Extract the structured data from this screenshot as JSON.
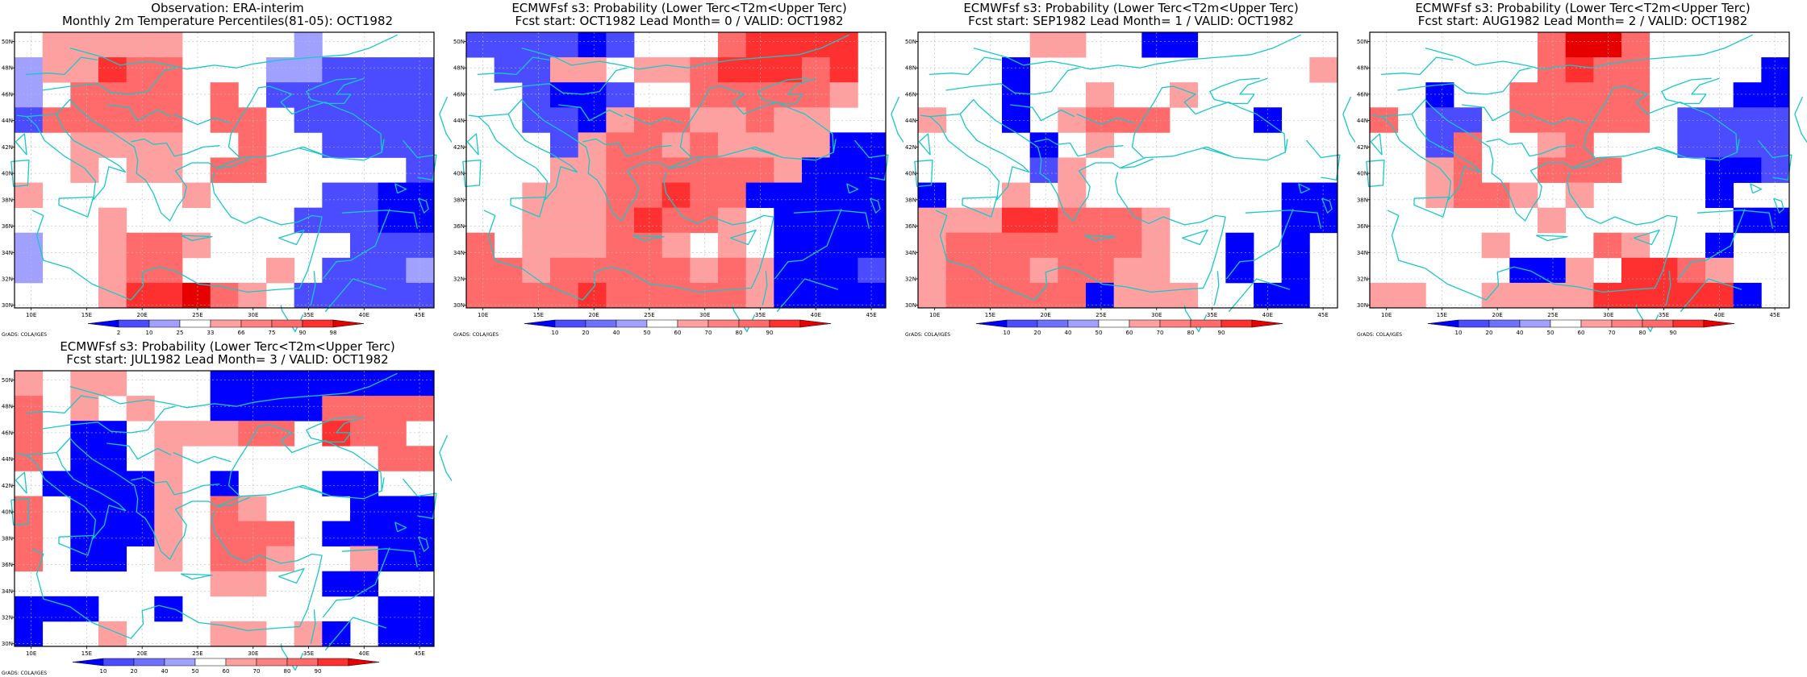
{
  "map": {
    "lon_labels": [
      "10E",
      "15E",
      "20E",
      "25E",
      "30E",
      "35E",
      "40E",
      "45E"
    ],
    "lat_labels": [
      "30N",
      "32N",
      "34N",
      "36N",
      "38N",
      "40N",
      "42N",
      "44N",
      "46N",
      "48N",
      "50N"
    ],
    "credit": "GrADS: COLA/IGES",
    "colors": {
      "deep_blue": "#0000ff",
      "mid_blue": "#4b4bff",
      "light_blue": "#a0a0ff",
      "light_red": "#ffa0a0",
      "mid_red": "#ff6b6b",
      "red": "#ff3030",
      "deep_red": "#e60000",
      "coastline": "#19c8c8"
    }
  },
  "panels": [
    {
      "title_line1": "Observation: ERA-interim",
      "title_line2": "Monthly 2m Temperature Percentiles(81-05): OCT1982",
      "colorbar_labels": [
        "2",
        "10",
        "25",
        "33",
        "66",
        "75",
        "90",
        "98"
      ]
    },
    {
      "title_line1": "ECMWFsf s3: Probability (Lower Terc<T2m<Upper Terc)",
      "title_line2": "Fcst start: OCT1982   Lead Month= 0 / VALID: OCT1982",
      "colorbar_labels": [
        "10",
        "20",
        "40",
        "50",
        "60",
        "70",
        "80",
        "90"
      ]
    },
    {
      "title_line1": "ECMWFsf s3: Probability (Lower Terc<T2m<Upper Terc)",
      "title_line2": "Fcst start: SEP1982   Lead Month= 1 / VALID: OCT1982",
      "colorbar_labels": [
        "10",
        "20",
        "40",
        "50",
        "60",
        "70",
        "80",
        "90"
      ]
    },
    {
      "title_line1": "ECMWFsf s3: Probability (Lower Terc<T2m<Upper Terc)",
      "title_line2": "Fcst start: AUG1982   Lead Month= 2 / VALID: OCT1982",
      "colorbar_labels": [
        "10",
        "20",
        "40",
        "50",
        "60",
        "70",
        "80",
        "90"
      ]
    },
    {
      "title_line1": "ECMWFsf s3: Probability (Lower Terc<T2m<Upper Terc)",
      "title_line2": "Fcst start: JUL1982   Lead Month= 3 / VALID: OCT1982",
      "colorbar_labels": [
        "10",
        "20",
        "40",
        "50",
        "60",
        "70",
        "80",
        "90"
      ]
    }
  ]
}
